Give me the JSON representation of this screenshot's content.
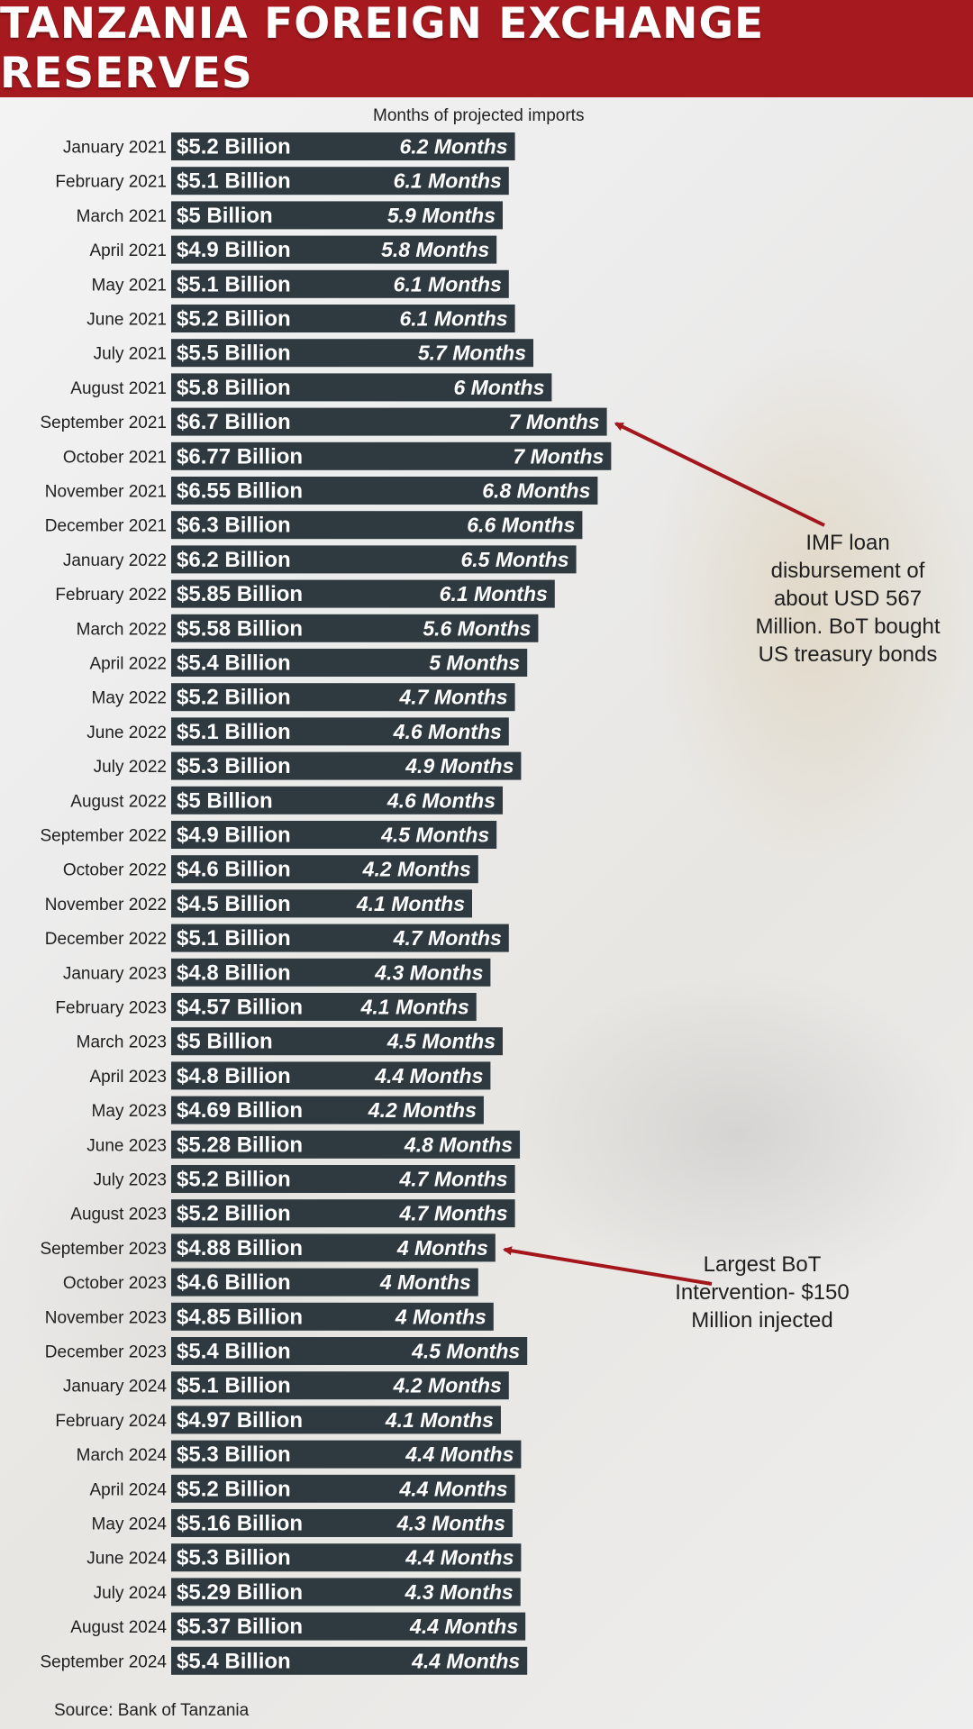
{
  "header": {
    "title": "TANZANIA FOREIGN EXCHANGE RESERVES"
  },
  "subtitle": "Months of projected imports",
  "annotations": {
    "imf": "IMF loan disbursement of about USD  567 Million. BoT bought US treasury bonds",
    "bot": "Largest  BoT Intervention- $150 Million injected"
  },
  "source": "Source: Bank of Tanzania",
  "colors": {
    "header": "#a6191e",
    "bar": "#2f3a40",
    "arrow": "#a3161c"
  },
  "chart_data": {
    "type": "bar",
    "orientation": "horizontal",
    "categories": [
      "January 2021",
      "February  2021",
      "March 2021",
      "April 2021",
      "May 2021",
      "June 2021",
      "July 2021",
      "August 2021",
      "September 2021",
      "October 2021",
      "November 2021",
      "December  2021",
      "January  2022",
      "February  2022",
      "March  2022",
      "April 2022",
      "May 2022",
      "June 2022",
      "July 2022",
      "August 2022",
      "September 2022",
      "October 2022",
      "November 2022",
      "December 2022",
      "January  2023",
      "February 2023",
      "March  2023",
      "April  2023",
      "May  2023",
      "June  2023",
      "July 2023",
      "August 2023",
      "September 2023",
      "October 2023",
      "November 2023",
      "December 2023",
      "January  2024",
      "February  2024",
      "March  2024",
      "April  2024",
      "May  2024",
      "June  2024",
      "July  2024",
      "August  2024",
      "September  2024"
    ],
    "reserves_labels": [
      "$5.2 Billion",
      "$5.1 Billion",
      "$5 Billion",
      "$4.9 Billion",
      "$5.1 Billion",
      "$5.2 Billion",
      "$5.5 Billion",
      "$5.8 Billion",
      "$6.7 Billion",
      "$6.77 Billion",
      "$6.55 Billion",
      "$6.3 Billion",
      "$6.2 Billion",
      "$5.85 Billion",
      "$5.58 Billion",
      "$5.4 Billion",
      "$5.2 Billion",
      "$5.1 Billion",
      "$5.3 Billion",
      "$5 Billion",
      "$4.9 Billion",
      "$4.6 Billion",
      "$4.5 Billion",
      "$5.1 Billion",
      "$4.8 Billion",
      "$4.57 Billion",
      "$5 Billion",
      "$4.8 Billion",
      "$4.69 Billion",
      "$5.28 Billion",
      "$5.2 Billion",
      "$5.2 Billion",
      "$4.88 Billion",
      "$4.6 Billion",
      "$4.85 Billion",
      "$5.4 Billion",
      "$5.1 Billion",
      "$4.97 Billion",
      "$5.3 Billion",
      "$5.2 Billion",
      "$5.16 Billion",
      "$5.3 Billion",
      "$5.29 Billion",
      "$5.37 Billion",
      "$5.4 Billion"
    ],
    "months_labels": [
      "6.2 Months",
      "6.1 Months",
      "5.9 Months",
      "5.8 Months",
      "6.1 Months",
      "6.1 Months",
      "5.7 Months",
      "6  Months",
      "7  Months",
      "7 Months",
      "6.8 Months",
      "6.6 Months",
      "6.5 Months",
      "6.1 Months",
      "5.6 Months",
      "5 Months",
      "4.7 Months",
      "4.6 Months",
      "4.9 Months",
      "4.6 Months",
      "4.5 Months",
      "4.2 Months",
      "4.1 Months",
      "4.7 Months",
      "4.3 Months",
      "4.1 Months",
      "4.5 Months",
      "4.4 Months",
      "4.2 Months",
      "4.8 Months",
      "4.7 Months",
      "4.7 Months",
      "4 Months",
      "4 Months",
      "4 Months",
      "4.5 Months",
      "4.2 Months",
      "4.1 Months",
      "4.4 Months",
      "4.4 Months",
      "4.3 Months",
      "4.4 Months",
      "4.3 Months",
      "4.4 Months",
      "4.4 Months"
    ],
    "reserves_billion_usd": [
      5.2,
      5.1,
      5.0,
      4.9,
      5.1,
      5.2,
      5.5,
      5.8,
      6.7,
      6.77,
      6.55,
      6.3,
      6.2,
      5.85,
      5.58,
      5.4,
      5.2,
      5.1,
      5.3,
      5.0,
      4.9,
      4.6,
      4.5,
      5.1,
      4.8,
      4.57,
      5.0,
      4.8,
      4.69,
      5.28,
      5.2,
      5.2,
      4.88,
      4.6,
      4.85,
      5.4,
      5.1,
      4.97,
      5.3,
      5.2,
      5.16,
      5.3,
      5.29,
      5.37,
      5.4
    ],
    "months_of_imports": [
      6.2,
      6.1,
      5.9,
      5.8,
      6.1,
      6.1,
      5.7,
      6,
      7,
      7,
      6.8,
      6.6,
      6.5,
      6.1,
      5.6,
      5,
      4.7,
      4.6,
      4.9,
      4.6,
      4.5,
      4.2,
      4.1,
      4.7,
      4.3,
      4.1,
      4.5,
      4.4,
      4.2,
      4.8,
      4.7,
      4.7,
      4,
      4,
      4,
      4.5,
      4.2,
      4.1,
      4.4,
      4.4,
      4.3,
      4.4,
      4.3,
      4.4,
      4.4
    ],
    "annotated_points": [
      {
        "category": "September 2021",
        "annotation": "imf"
      },
      {
        "category": "September 2023",
        "annotation": "bot"
      }
    ],
    "title": "TANZANIA FOREIGN EXCHANGE RESERVES",
    "xlabel": "Months of projected imports",
    "ylabel": "",
    "grid": false,
    "legend": "none"
  }
}
